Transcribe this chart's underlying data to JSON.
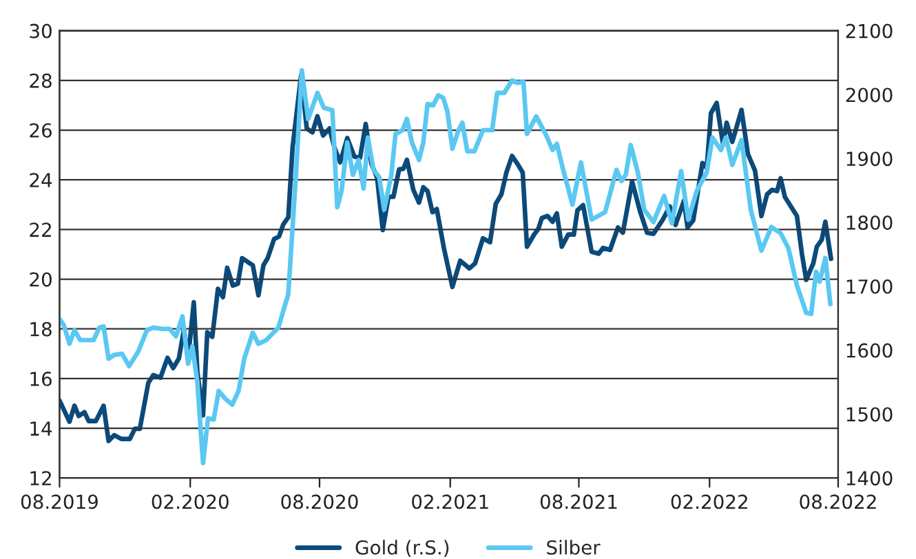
{
  "chart_data": {
    "type": "line",
    "xticks": [
      {
        "value": "2019-08-01",
        "label": "08.2019"
      },
      {
        "value": "2020-02-01",
        "label": "02.2020"
      },
      {
        "value": "2020-08-01",
        "label": "08.2020"
      },
      {
        "value": "2021-02-01",
        "label": "02.2021"
      },
      {
        "value": "2021-08-01",
        "label": "08.2021"
      },
      {
        "value": "2022-02-01",
        "label": "02.2022"
      },
      {
        "value": "2022-08-01",
        "label": "08.2022"
      }
    ],
    "xlim": [
      "2019-08-01",
      "2022-08-01"
    ],
    "ylim": [
      12,
      30
    ],
    "yticks": [
      12,
      14,
      16,
      18,
      20,
      22,
      24,
      26,
      28,
      30
    ],
    "y2lim": [
      1400,
      2100
    ],
    "y2ticks": [
      1400,
      1500,
      1600,
      1700,
      1800,
      1900,
      2000,
      2100
    ],
    "grid": "y",
    "legend": "bottom",
    "marker": "none",
    "line_style": "solid",
    "series": [
      {
        "name": "Gold (r.S.)",
        "color": "#0b4a7a",
        "axis": "y2",
        "x": [
          "2019-08-01",
          "2019-08-15",
          "2019-08-22",
          "2019-08-28",
          "2019-09-05",
          "2019-09-11",
          "2019-09-21",
          "2019-10-02",
          "2019-10-09",
          "2019-10-17",
          "2019-10-27",
          "2019-11-08",
          "2019-11-15",
          "2019-11-22",
          "2019-12-04",
          "2019-12-11",
          "2019-12-21",
          "2019-12-31",
          "2020-01-08",
          "2020-01-16",
          "2020-01-23",
          "2020-01-29",
          "2020-02-06",
          "2020-02-11",
          "2020-02-19",
          "2020-02-25",
          "2020-03-03",
          "2020-03-11",
          "2020-03-18",
          "2020-03-24",
          "2020-04-01",
          "2020-04-08",
          "2020-04-14",
          "2020-04-22",
          "2020-04-29",
          "2020-05-07",
          "2020-05-14",
          "2020-05-20",
          "2020-05-29",
          "2020-06-05",
          "2020-06-11",
          "2020-06-18",
          "2020-06-24",
          "2020-07-06",
          "2020-07-14",
          "2020-07-22",
          "2020-07-29",
          "2020-08-06",
          "2020-08-15",
          "2020-08-22",
          "2020-08-30",
          "2020-09-09",
          "2020-09-19",
          "2020-09-27",
          "2020-10-05",
          "2020-10-13",
          "2020-10-21",
          "2020-10-29",
          "2020-11-06",
          "2020-11-13",
          "2020-11-21",
          "2020-11-27",
          "2020-12-02",
          "2020-12-11",
          "2020-12-19",
          "2020-12-25",
          "2020-12-31",
          "2021-01-07",
          "2021-01-13",
          "2021-01-23",
          "2021-02-04",
          "2021-02-15",
          "2021-02-28",
          "2021-03-08",
          "2021-03-19",
          "2021-03-29",
          "2021-04-06",
          "2021-04-14",
          "2021-04-21",
          "2021-04-29",
          "2021-05-07",
          "2021-05-14",
          "2021-05-20",
          "2021-05-30",
          "2021-06-05",
          "2021-06-10",
          "2021-06-18",
          "2021-06-25",
          "2021-07-01",
          "2021-07-08",
          "2021-07-17",
          "2021-07-25",
          "2021-07-30",
          "2021-08-07",
          "2021-08-19",
          "2021-08-29",
          "2021-09-04",
          "2021-09-14",
          "2021-09-25",
          "2021-10-02",
          "2021-10-15",
          "2021-10-26",
          "2021-11-05",
          "2021-11-14",
          "2021-11-27",
          "2021-12-07",
          "2021-12-15",
          "2021-12-27",
          "2022-01-01",
          "2022-01-09",
          "2022-01-22",
          "2022-01-28",
          "2022-02-03",
          "2022-02-11",
          "2022-02-20",
          "2022-02-25",
          "2022-03-05",
          "2022-03-18",
          "2022-03-27",
          "2022-04-06",
          "2022-04-15",
          "2022-04-23",
          "2022-04-30",
          "2022-05-07",
          "2022-05-12",
          "2022-05-18",
          "2022-06-04",
          "2022-06-11",
          "2022-06-17",
          "2022-06-27",
          "2022-07-02",
          "2022-07-09",
          "2022-07-14",
          "2022-07-22"
        ],
        "values": [
          1521,
          1488,
          1513,
          1497,
          1503,
          1489,
          1489,
          1513,
          1458,
          1467,
          1461,
          1461,
          1477,
          1477,
          1549,
          1561,
          1557,
          1588,
          1572,
          1587,
          1632,
          1588,
          1675,
          1566,
          1498,
          1628,
          1621,
          1696,
          1683,
          1729,
          1701,
          1704,
          1744,
          1738,
          1733,
          1686,
          1733,
          1744,
          1774,
          1778,
          1797,
          1808,
          1917,
          2030,
          1947,
          1941,
          1966,
          1936,
          1947,
          1917,
          1894,
          1932,
          1903,
          1901,
          1954,
          1892,
          1870,
          1788,
          1840,
          1840,
          1883,
          1884,
          1898,
          1851,
          1831,
          1855,
          1849,
          1816,
          1821,
          1760,
          1699,
          1740,
          1728,
          1736,
          1775,
          1769,
          1829,
          1844,
          1878,
          1904,
          1891,
          1878,
          1762,
          1781,
          1790,
          1807,
          1810,
          1801,
          1814,
          1762,
          1781,
          1781,
          1819,
          1827,
          1754,
          1751,
          1760,
          1757,
          1792,
          1784,
          1864,
          1818,
          1784,
          1782,
          1804,
          1825,
          1796,
          1834,
          1792,
          1803,
          1893,
          1885,
          1971,
          1987,
          1922,
          1956,
          1926,
          1976,
          1907,
          1881,
          1810,
          1844,
          1851,
          1849,
          1869,
          1840,
          1810,
          1751,
          1710,
          1736,
          1762,
          1773,
          1801,
          1743
        ]
      },
      {
        "name": "Silber",
        "color": "#5bc8f2",
        "x": [
          "2019-08-01",
          "2019-08-07",
          "2019-08-15",
          "2019-08-22",
          "2019-08-30",
          "2019-09-18",
          "2019-09-26",
          "2019-10-02",
          "2019-10-09",
          "2019-10-17",
          "2019-10-28",
          "2019-11-07",
          "2019-11-20",
          "2019-12-02",
          "2019-12-11",
          "2019-12-24",
          "2020-01-03",
          "2020-01-12",
          "2020-01-21",
          "2020-01-29",
          "2020-02-04",
          "2020-02-11",
          "2020-02-19",
          "2020-02-26",
          "2020-03-05",
          "2020-03-12",
          "2020-03-21",
          "2020-03-31",
          "2020-04-09",
          "2020-04-17",
          "2020-04-29",
          "2020-05-07",
          "2020-05-18",
          "2020-06-04",
          "2020-06-18",
          "2020-06-29",
          "2020-07-07",
          "2020-07-16",
          "2020-07-29",
          "2020-08-07",
          "2020-08-19",
          "2020-08-26",
          "2020-09-01",
          "2020-09-09",
          "2020-09-17",
          "2020-09-25",
          "2020-10-02",
          "2020-10-08",
          "2020-10-16",
          "2020-10-24",
          "2020-10-31",
          "2020-11-10",
          "2020-11-16",
          "2020-11-26",
          "2020-12-02",
          "2020-12-09",
          "2020-12-19",
          "2020-12-25",
          "2020-12-31",
          "2021-01-08",
          "2021-01-15",
          "2021-01-22",
          "2021-01-28",
          "2021-02-04",
          "2021-02-12",
          "2021-02-18",
          "2021-02-25",
          "2021-03-07",
          "2021-03-19",
          "2021-04-01",
          "2021-04-08",
          "2021-04-18",
          "2021-04-29",
          "2021-05-07",
          "2021-05-15",
          "2021-05-20",
          "2021-06-02",
          "2021-06-16",
          "2021-06-25",
          "2021-07-01",
          "2021-07-10",
          "2021-07-23",
          "2021-08-04",
          "2021-08-19",
          "2021-09-07",
          "2021-09-23",
          "2021-09-30",
          "2021-10-06",
          "2021-10-13",
          "2021-10-23",
          "2021-11-01",
          "2021-11-14",
          "2021-11-29",
          "2021-12-10",
          "2021-12-23",
          "2022-01-02",
          "2022-01-14",
          "2022-01-28",
          "2022-02-05",
          "2022-02-17",
          "2022-02-24",
          "2022-03-05",
          "2022-03-18",
          "2022-03-31",
          "2022-04-15",
          "2022-04-29",
          "2022-05-12",
          "2022-05-23",
          "2022-06-04",
          "2022-06-17",
          "2022-06-24",
          "2022-07-01",
          "2022-07-06",
          "2022-07-14",
          "2022-07-21"
        ],
        "values": [
          18.4,
          18.15,
          17.4,
          17.95,
          17.55,
          17.55,
          18.05,
          18.1,
          16.8,
          16.95,
          17.0,
          16.5,
          17.1,
          17.95,
          18.05,
          18.0,
          18.0,
          17.7,
          18.5,
          16.6,
          17.3,
          15.85,
          12.6,
          14.4,
          14.35,
          15.5,
          15.2,
          14.95,
          15.5,
          16.8,
          17.85,
          17.4,
          17.55,
          18.05,
          19.4,
          24.3,
          28.4,
          26.45,
          27.5,
          26.9,
          26.8,
          22.9,
          23.55,
          25.5,
          24.2,
          24.8,
          23.65,
          25.7,
          24.4,
          24.1,
          22.8,
          24.2,
          25.85,
          26.0,
          26.45,
          25.5,
          24.8,
          25.5,
          27.05,
          27.0,
          27.4,
          27.3,
          26.75,
          25.25,
          25.95,
          26.3,
          25.15,
          25.15,
          26.0,
          26.0,
          27.5,
          27.5,
          28.0,
          27.9,
          27.95,
          25.85,
          26.55,
          25.8,
          25.2,
          25.45,
          24.4,
          23.0,
          24.7,
          22.4,
          22.7,
          24.4,
          23.95,
          24.2,
          25.4,
          24.3,
          22.8,
          22.3,
          23.35,
          22.25,
          24.35,
          22.4,
          23.55,
          24.3,
          25.7,
          25.2,
          25.7,
          24.6,
          25.6,
          22.8,
          21.15,
          22.1,
          21.85,
          21.25,
          19.75,
          18.65,
          18.6,
          20.3,
          19.9,
          20.85,
          19.0
        ]
      }
    ]
  }
}
